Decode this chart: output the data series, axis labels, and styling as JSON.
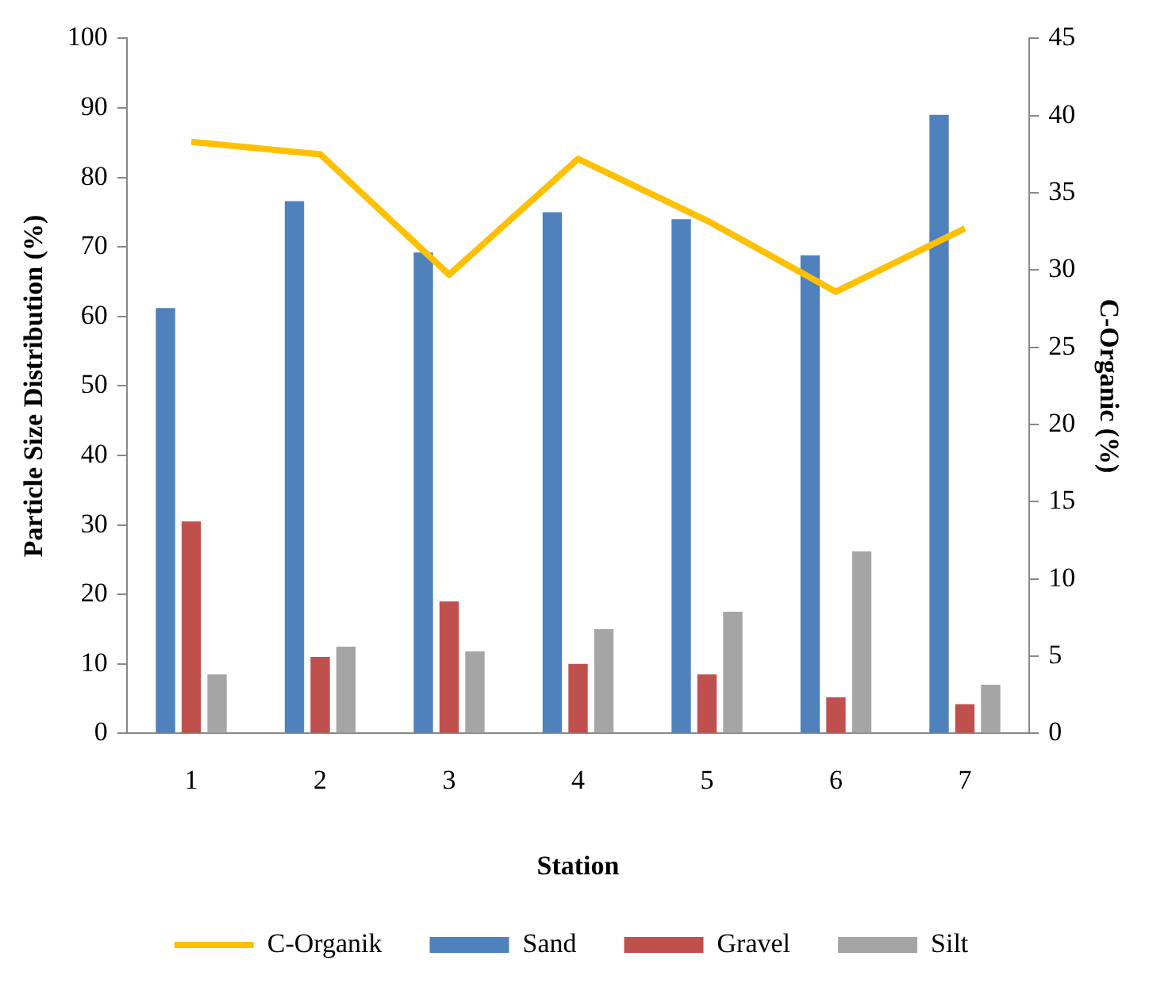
{
  "chart_data": {
    "type": "bar",
    "xlabel": "Station",
    "ylabel": "Particle Size Distribution (%)",
    "y2label": "C-Organic (%)",
    "categories": [
      "1",
      "2",
      "3",
      "4",
      "5",
      "6",
      "7"
    ],
    "series": [
      {
        "name": "Sand",
        "color": "#4f81bd",
        "values": [
          61.2,
          76.6,
          69.2,
          75,
          74,
          68.8,
          89
        ]
      },
      {
        "name": "Gravel",
        "color": "#c0504d",
        "values": [
          30.5,
          11,
          19,
          10,
          8.5,
          5.2,
          4.2
        ]
      },
      {
        "name": "Silt",
        "color": "#a5a5a5",
        "values": [
          8.5,
          12.5,
          11.8,
          15,
          17.5,
          26.2,
          7
        ]
      },
      {
        "name": "C-Organik",
        "type": "line",
        "axis": "y2",
        "color": "#ffc000",
        "values": [
          38.3,
          37.5,
          29.7,
          37.2,
          33.2,
          28.6,
          32.7
        ]
      }
    ],
    "ylim": [
      0,
      100
    ],
    "yticks": [
      0,
      10,
      20,
      30,
      40,
      50,
      60,
      70,
      80,
      90,
      100
    ],
    "y2lim": [
      0,
      45
    ],
    "y2ticks": [
      0,
      5,
      10,
      15,
      20,
      25,
      30,
      35,
      40,
      45
    ],
    "grid": false,
    "legend": "bottom",
    "marker": "none",
    "line_style": "solid"
  }
}
